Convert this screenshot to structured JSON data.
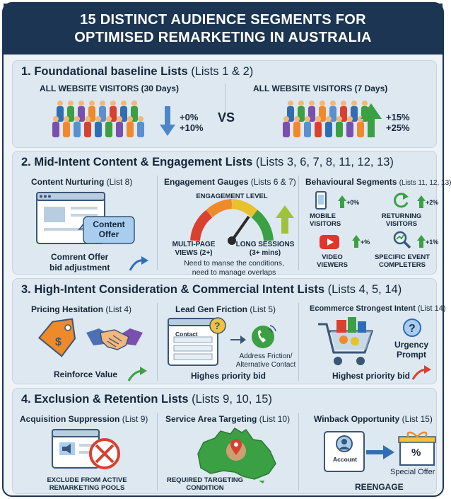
{
  "header": {
    "line1": "15 DISTINCT AUDIENCE SEGMENTS FOR",
    "line2": "OPTIMISED REMARKETING IN AUSTRALIA"
  },
  "s1": {
    "title_bold": "1. Foundational baseline Lists",
    "title_rest": "(Lists 1 & 2)",
    "left_label": "ALL WEBSITE VISITORS (30 Days)",
    "left_p1": "+0%",
    "left_p2": "+10%",
    "vs": "VS",
    "right_label": "ALL WEBSITE VISITORS (7 Days)",
    "right_p1": "+15%",
    "right_p2": "+25%"
  },
  "s2": {
    "title_bold": "2. Mid-Intent Content & Engagement Lists",
    "title_rest": "(Lists 3, 6, 7, 8, 11, 12, 13)",
    "c1_label": "Content Nurturing",
    "c1_list": "(List 8)",
    "c1_bubble1": "Content",
    "c1_bubble2": "Offer",
    "c1_cap1": "Comrent Offer",
    "c1_cap2": "bid adjustment",
    "c2_label": "Engagement Gauges",
    "c2_list": "(Lists 6 & 7)",
    "gauge_title": "ENGAGEMENT LEVEL",
    "c2_left1": "MULTI-PAGE",
    "c2_left2": "VIEWS (2+)",
    "c2_right1": "LONG SESSIONS",
    "c2_right2": "(3+ mins)",
    "c2_note1": "Need to manse the conditions,",
    "c2_note2": "need to manage overlaps",
    "c3_label": "Behavioural Segments",
    "c3_list": "(Lists 11, 12, 13)",
    "b1_1": "MOBILE",
    "b1_2": "VISITORS",
    "b1_pct": "+0%",
    "b2_1": "RETURNING",
    "b2_2": "VISITORS",
    "b2_pct": "+2%",
    "b3_1": "VIDEO",
    "b3_2": "VIEWERS",
    "b3_pct": "+%",
    "b4_1": "SPECIFIC EVENT",
    "b4_2": "COMPLETERS",
    "b4_pct": "+1%"
  },
  "s3": {
    "title_bold": "3. High-Intent Consideration & Commercial Intent Lists",
    "title_rest": "(Lists 4, 5, 14)",
    "c1_label": "Pricing Hesitation",
    "c1_list": "(List 4)",
    "c1_cap": "Reinforce Value",
    "c2_label": "Lead Gen Friction",
    "c2_list": "(List 5)",
    "c2_form": "Contact",
    "c2_addr1": "Address Friction/",
    "c2_addr2": "Alternative Contact",
    "c2_cap": "Highes priority bid",
    "c3_label": "Ecommerce Strongest Intent",
    "c3_list": "(List 14)",
    "c3_urg1": "Urgency",
    "c3_urg2": "Prompt",
    "c3_cap": "Highest priority bid"
  },
  "s4": {
    "title_bold": "4. Exclusion & Retention Lists",
    "title_rest": "(Lists 9, 10, 15)",
    "c1_label": "Acquisition Suppression",
    "c1_list": "(List 9)",
    "c1_cap1": "EXCLUDE FROM ACTIVE",
    "c1_cap2": "REMARKETING POOLS",
    "c2_label": "Service Area Targeting",
    "c2_list": "(List 10)",
    "c2_cap1": "REQUIRED TARGETING",
    "c2_cap2": "CONDITION",
    "c3_label": "Winback Opportunity",
    "c3_list": "(List 15)",
    "c3_account": "Account",
    "c3_offer": "Special Offer",
    "c3_pct": "%",
    "c3_cap": "REENGAGE"
  },
  "colors": {
    "navy": "#1c3552",
    "panel": "#dde8f0",
    "green": "#3aa043",
    "blue": "#2f6eb5",
    "red": "#d8412f",
    "orange": "#ef8a2b"
  }
}
